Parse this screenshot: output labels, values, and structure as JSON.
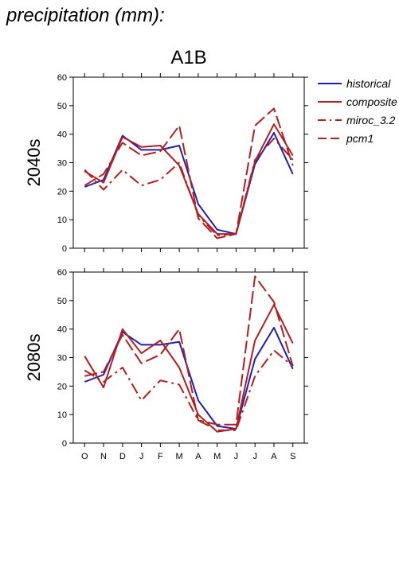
{
  "page": {
    "title": "precipitation (mm):"
  },
  "chart_data": {
    "type": "line",
    "title": "A1B",
    "categories": [
      "O",
      "N",
      "D",
      "J",
      "F",
      "M",
      "A",
      "M",
      "J",
      "J",
      "A",
      "S"
    ],
    "ylim": [
      0,
      60
    ],
    "yticks": [
      0,
      10,
      20,
      30,
      40,
      50,
      60
    ],
    "legend": {
      "placement": "top-right"
    },
    "colors": {
      "historical": "#1f1fb4",
      "composite": "#b41e1e",
      "miroc_3.2": "#b41e1e",
      "pcm1": "#b41e1e"
    },
    "panels": [
      {
        "label": "2040s",
        "series": [
          {
            "name": "historical",
            "style": "solid",
            "values": [
              21.5,
              24,
              39.5,
              34.5,
              34.5,
              36,
              15.5,
              6.5,
              5,
              29.5,
              40.5,
              26
            ]
          },
          {
            "name": "composite",
            "style": "solid",
            "values": [
              27,
              23,
              39,
              35.5,
              36,
              29,
              12,
              5,
              5,
              30.5,
              43.5,
              32.5
            ]
          },
          {
            "name": "miroc_3.2",
            "style": "dashdot",
            "values": [
              27.5,
              20.5,
              27.5,
              22,
              24,
              30,
              11.5,
              4.5,
              5,
              31,
              38.5,
              31
            ]
          },
          {
            "name": "pcm1",
            "style": "dashed",
            "values": [
              22,
              26,
              37,
              32.5,
              34,
              43,
              10.5,
              3.5,
              5,
              43,
              49,
              29
            ]
          }
        ]
      },
      {
        "label": "2080s",
        "series": [
          {
            "name": "historical",
            "style": "solid",
            "values": [
              21.5,
              24,
              39,
              34.5,
              34.5,
              35.5,
              15,
              6,
              5,
              29.5,
              40.5,
              26
            ]
          },
          {
            "name": "composite",
            "style": "solid",
            "values": [
              30.5,
              19.5,
              40,
              31.5,
              36,
              26.5,
              10,
              4,
              5,
              36,
              48.5,
              35
            ]
          },
          {
            "name": "miroc_3.2",
            "style": "dashdot",
            "values": [
              25.5,
              21.5,
              26.5,
              15,
              22,
              20.5,
              8,
              4.5,
              4.5,
              23.5,
              32.5,
              27
            ]
          },
          {
            "name": "pcm1",
            "style": "dashed",
            "values": [
              23.5,
              25,
              38,
              28,
              31,
              40,
              8,
              6.5,
              6.5,
              58.5,
              49.5,
              27
            ]
          }
        ]
      }
    ]
  }
}
